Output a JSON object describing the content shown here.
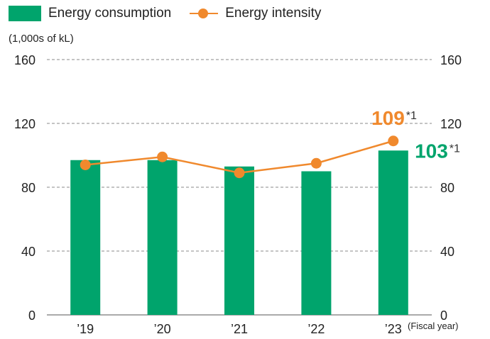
{
  "legend": {
    "bar_label": "Energy consumption",
    "line_label": "Energy intensity"
  },
  "unit_label": "(1,000s of kL)",
  "x_axis_note": "(Fiscal year)",
  "annotations": {
    "intensity_value": "109",
    "intensity_note": "*1",
    "consumption_value": "103",
    "consumption_note": "*1"
  },
  "colors": {
    "bar": "#00a46c",
    "line": "#f0892d",
    "grid": "#888888"
  },
  "chart_data": {
    "type": "bar",
    "categories": [
      "’19",
      "’20",
      "’21",
      "’22",
      "’23"
    ],
    "ylim": [
      0,
      160
    ],
    "y2lim": [
      0,
      160
    ],
    "yticks": [
      0,
      40,
      80,
      120,
      160
    ],
    "grid": true,
    "legend_position": "top-left",
    "series": [
      {
        "name": "Energy consumption",
        "type": "bar",
        "axis": "left",
        "values": [
          97,
          97,
          93,
          90,
          103
        ]
      },
      {
        "name": "Energy intensity",
        "type": "line",
        "axis": "right",
        "values": [
          94,
          99,
          89,
          95,
          109
        ]
      }
    ]
  }
}
